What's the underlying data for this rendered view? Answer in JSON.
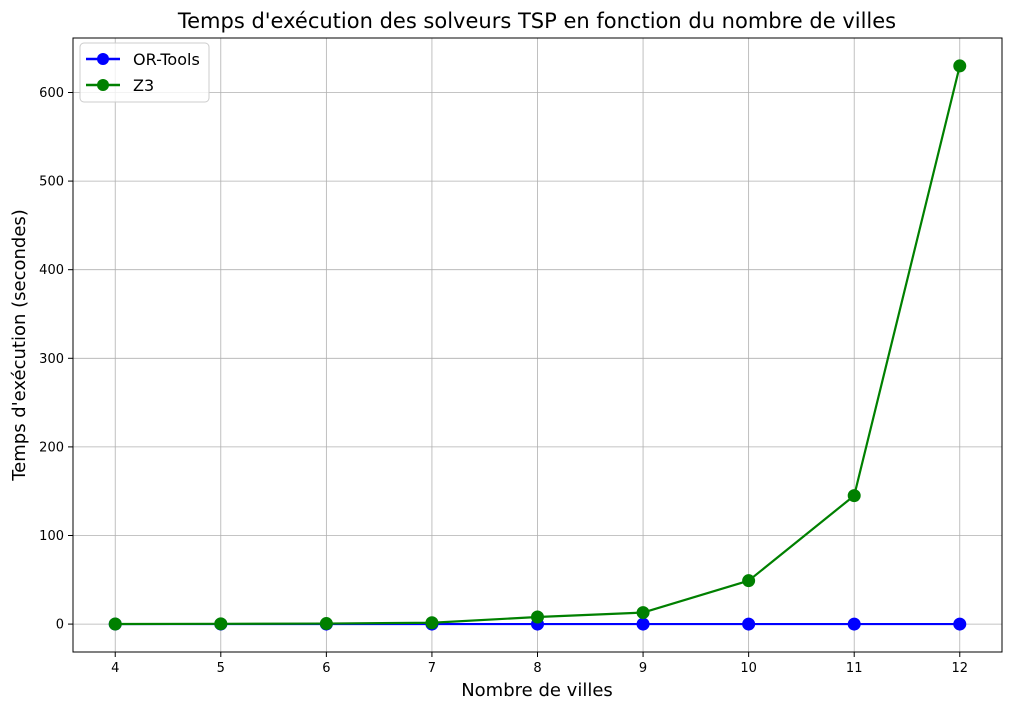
{
  "chart_data": {
    "type": "line",
    "title": "Temps d'exécution des solveurs TSP en fonction du nombre de villes",
    "xlabel": "Nombre de villes",
    "ylabel": "Temps d'exécution (secondes)",
    "x": [
      4,
      5,
      6,
      7,
      8,
      9,
      10,
      11,
      12
    ],
    "xlim": [
      3.6,
      12.4
    ],
    "ylim": [
      -31.5,
      661.5
    ],
    "x_ticks": [
      4,
      5,
      6,
      7,
      8,
      9,
      10,
      11,
      12
    ],
    "y_ticks": [
      0,
      100,
      200,
      300,
      400,
      500,
      600
    ],
    "grid": true,
    "legend_position": "top-left",
    "series": [
      {
        "name": "OR-Tools",
        "color": "#0000ff",
        "marker": "circle",
        "values": [
          0.01,
          0.01,
          0.01,
          0.01,
          0.01,
          0.01,
          0.01,
          0.01,
          0.01
        ]
      },
      {
        "name": "Z3",
        "color": "#008000",
        "marker": "circle",
        "values": [
          0.1,
          0.3,
          0.6,
          1.5,
          8,
          13,
          49,
          145,
          630
        ]
      }
    ]
  }
}
